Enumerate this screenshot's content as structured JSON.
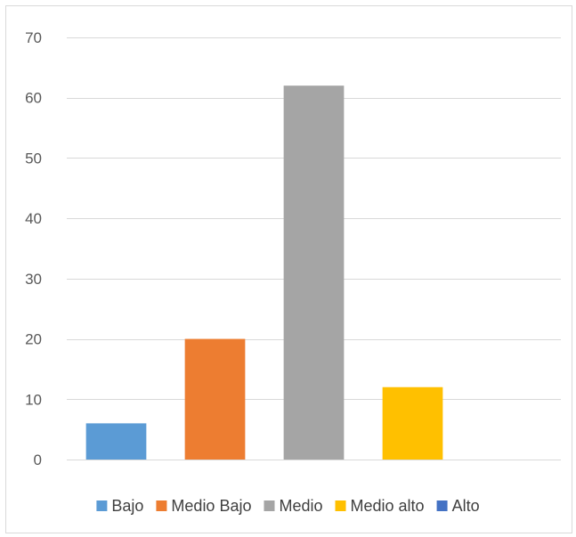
{
  "chart_data": {
    "type": "bar",
    "categories": [
      "Bajo",
      "Medio Bajo",
      "Medio",
      "Medio alto",
      "Alto"
    ],
    "values": [
      6,
      20,
      62,
      12,
      0
    ],
    "colors": [
      "#5b9bd5",
      "#ed7d31",
      "#a5a5a5",
      "#ffc000",
      "#4472c4"
    ],
    "ylim": [
      0,
      70
    ],
    "yticks": [
      0,
      10,
      20,
      30,
      40,
      50,
      60,
      70
    ],
    "grid": true,
    "legend": "bottom",
    "title": "",
    "xlabel": "",
    "ylabel": ""
  }
}
